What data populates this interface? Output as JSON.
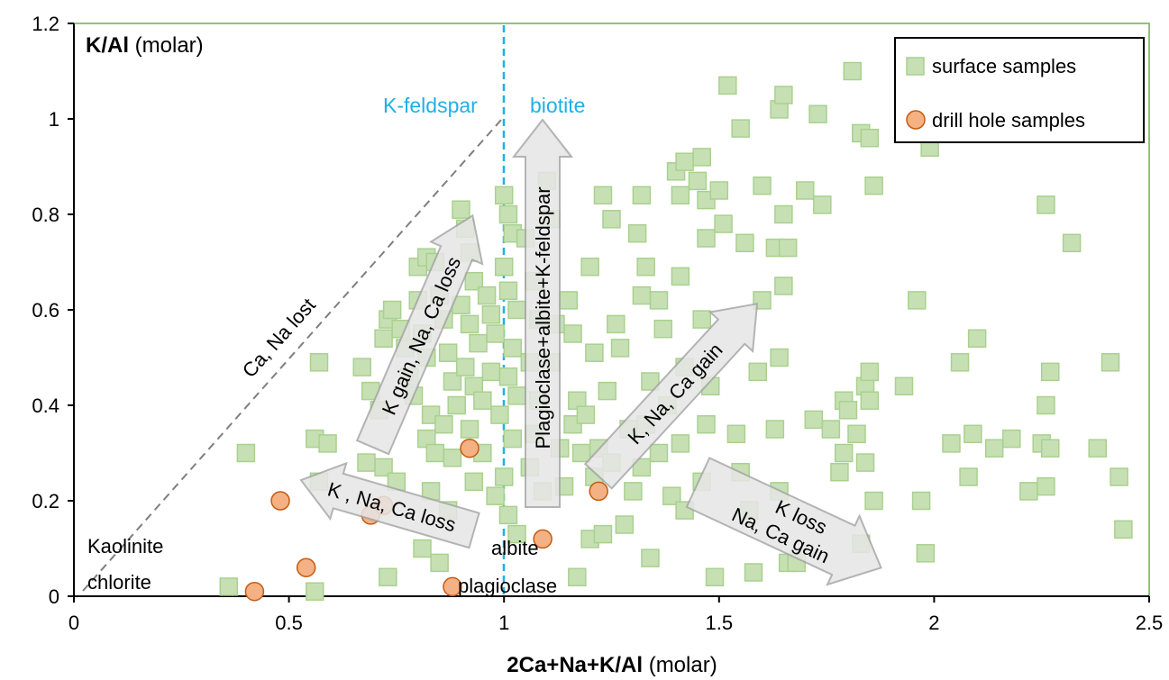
{
  "chart_data": {
    "type": "scatter",
    "x_label_bold": "2Ca+Na+K/Al",
    "x_label_unit": " (molar)",
    "y_label_bold": "K/Al",
    "y_label_unit": " (molar)",
    "xlim": [
      0,
      2.5
    ],
    "ylim": [
      0,
      1.2
    ],
    "x_ticks": [
      "0",
      "0.5",
      "1",
      "1.5",
      "2",
      "2.5"
    ],
    "x_tick_values": [
      0,
      0.5,
      1,
      1.5,
      2,
      2.5
    ],
    "y_ticks": [
      "0",
      "0.2",
      "0.4",
      "0.6",
      "0.8",
      "1",
      "1.2"
    ],
    "y_tick_values": [
      0,
      0.2,
      0.4,
      0.6,
      0.8,
      1,
      1.2
    ],
    "grid": false,
    "legend_position": "top-right",
    "colors": {
      "surface_fill": "#c6e0b4",
      "surface_stroke": "#a9d18e",
      "drill_fill": "#f4b183",
      "drill_stroke": "#c55a11",
      "divider": "#1fb0e6",
      "dashed_line": "#7f7f7f",
      "arrow_fill": "#e7e6e6",
      "arrow_stroke": "#a6a6a6",
      "plot_border": "#70ad47"
    },
    "series": [
      {
        "name": "surface samples",
        "marker": "square",
        "points": [
          [
            0.4,
            0.3
          ],
          [
            0.57,
            0.49
          ],
          [
            0.56,
            0.33
          ],
          [
            0.59,
            0.32
          ],
          [
            0.57,
            0.24
          ],
          [
            0.56,
            0.01
          ],
          [
            0.36,
            0.02
          ],
          [
            0.67,
            0.48
          ],
          [
            0.69,
            0.43
          ],
          [
            0.71,
            0.39
          ],
          [
            0.68,
            0.28
          ],
          [
            0.72,
            0.27
          ],
          [
            0.75,
            0.24
          ],
          [
            0.73,
            0.04
          ],
          [
            0.72,
            0.54
          ],
          [
            0.73,
            0.58
          ],
          [
            0.74,
            0.6
          ],
          [
            0.76,
            0.56
          ],
          [
            0.77,
            0.52
          ],
          [
            0.78,
            0.46
          ],
          [
            0.79,
            0.42
          ],
          [
            0.8,
            0.62
          ],
          [
            0.81,
            0.55
          ],
          [
            0.82,
            0.5
          ],
          [
            0.83,
            0.38
          ],
          [
            0.82,
            0.33
          ],
          [
            0.84,
            0.3
          ],
          [
            0.83,
            0.22
          ],
          [
            0.81,
            0.1
          ],
          [
            0.8,
            0.69
          ],
          [
            0.82,
            0.71
          ],
          [
            0.84,
            0.7
          ],
          [
            0.85,
            0.63
          ],
          [
            0.86,
            0.58
          ],
          [
            0.87,
            0.51
          ],
          [
            0.88,
            0.45
          ],
          [
            0.89,
            0.4
          ],
          [
            0.86,
            0.36
          ],
          [
            0.88,
            0.29
          ],
          [
            0.87,
            0.18
          ],
          [
            0.85,
            0.07
          ],
          [
            0.9,
            0.81
          ],
          [
            0.91,
            0.77
          ],
          [
            0.92,
            0.72
          ],
          [
            0.93,
            0.66
          ],
          [
            0.9,
            0.61
          ],
          [
            0.92,
            0.57
          ],
          [
            0.94,
            0.53
          ],
          [
            0.91,
            0.48
          ],
          [
            0.93,
            0.44
          ],
          [
            0.95,
            0.41
          ],
          [
            0.92,
            0.35
          ],
          [
            0.95,
            0.3
          ],
          [
            0.93,
            0.24
          ],
          [
            0.96,
            0.63
          ],
          [
            0.97,
            0.59
          ],
          [
            0.98,
            0.55
          ],
          [
            0.97,
            0.47
          ],
          [
            0.99,
            0.38
          ],
          [
            0.98,
            0.21
          ],
          [
            1.0,
            0.84
          ],
          [
            1.01,
            0.8
          ],
          [
            1.02,
            0.76
          ],
          [
            1.0,
            0.69
          ],
          [
            1.01,
            0.64
          ],
          [
            1.03,
            0.6
          ],
          [
            1.02,
            0.52
          ],
          [
            1.01,
            0.46
          ],
          [
            1.03,
            0.42
          ],
          [
            1.02,
            0.33
          ],
          [
            1.0,
            0.25
          ],
          [
            1.01,
            0.17
          ],
          [
            1.03,
            0.13
          ],
          [
            1.05,
            0.75
          ],
          [
            1.07,
            0.66
          ],
          [
            1.08,
            0.58
          ],
          [
            1.06,
            0.49
          ],
          [
            1.08,
            0.41
          ],
          [
            1.07,
            0.34
          ],
          [
            1.06,
            0.27
          ],
          [
            1.09,
            0.22
          ],
          [
            1.1,
            0.87
          ],
          [
            1.11,
            0.79
          ],
          [
            1.12,
            0.57
          ],
          [
            1.11,
            0.49
          ],
          [
            1.13,
            0.31
          ],
          [
            1.14,
            0.23
          ],
          [
            1.15,
            0.62
          ],
          [
            1.16,
            0.55
          ],
          [
            1.17,
            0.41
          ],
          [
            1.16,
            0.36
          ],
          [
            1.18,
            0.3
          ],
          [
            1.17,
            0.04
          ],
          [
            1.2,
            0.69
          ],
          [
            1.21,
            0.51
          ],
          [
            1.19,
            0.38
          ],
          [
            1.22,
            0.31
          ],
          [
            1.21,
            0.25
          ],
          [
            1.2,
            0.12
          ],
          [
            1.23,
            0.84
          ],
          [
            1.25,
            0.79
          ],
          [
            1.24,
            0.43
          ],
          [
            1.26,
            0.57
          ],
          [
            1.27,
            0.52
          ],
          [
            1.25,
            0.28
          ],
          [
            1.23,
            0.13
          ],
          [
            1.29,
            0.35
          ],
          [
            1.3,
            0.22
          ],
          [
            1.28,
            0.15
          ],
          [
            1.32,
            0.84
          ],
          [
            1.31,
            0.76
          ],
          [
            1.33,
            0.69
          ],
          [
            1.32,
            0.63
          ],
          [
            1.34,
            0.45
          ],
          [
            1.33,
            0.36
          ],
          [
            1.32,
            0.27
          ],
          [
            1.34,
            0.08
          ],
          [
            1.36,
            0.62
          ],
          [
            1.37,
            0.56
          ],
          [
            1.38,
            0.4
          ],
          [
            1.36,
            0.3
          ],
          [
            1.39,
            0.21
          ],
          [
            1.4,
            0.89
          ],
          [
            1.41,
            0.84
          ],
          [
            1.42,
            0.91
          ],
          [
            1.41,
            0.67
          ],
          [
            1.42,
            0.48
          ],
          [
            1.41,
            0.32
          ],
          [
            1.42,
            0.18
          ],
          [
            1.45,
            0.87
          ],
          [
            1.46,
            0.92
          ],
          [
            1.47,
            0.83
          ],
          [
            1.47,
            0.75
          ],
          [
            1.46,
            0.58
          ],
          [
            1.48,
            0.44
          ],
          [
            1.47,
            0.36
          ],
          [
            1.46,
            0.24
          ],
          [
            1.49,
            0.04
          ],
          [
            1.5,
            0.85
          ],
          [
            1.51,
            0.78
          ],
          [
            1.52,
            1.07
          ],
          [
            1.55,
            0.98
          ],
          [
            1.56,
            0.74
          ],
          [
            1.54,
            0.34
          ],
          [
            1.55,
            0.26
          ],
          [
            1.57,
            0.18
          ],
          [
            1.58,
            0.05
          ],
          [
            1.6,
            0.86
          ],
          [
            1.59,
            0.47
          ],
          [
            1.6,
            0.62
          ],
          [
            1.63,
            0.73
          ],
          [
            1.64,
            1.02
          ],
          [
            1.65,
            1.05
          ],
          [
            1.65,
            0.8
          ],
          [
            1.66,
            0.73
          ],
          [
            1.64,
            0.5
          ],
          [
            1.65,
            0.65
          ],
          [
            1.63,
            0.35
          ],
          [
            1.64,
            0.22
          ],
          [
            1.66,
            0.07
          ],
          [
            1.68,
            0.07
          ],
          [
            1.7,
            0.85
          ],
          [
            1.72,
            0.37
          ],
          [
            1.73,
            1.01
          ],
          [
            1.74,
            0.82
          ],
          [
            1.76,
            0.35
          ],
          [
            1.78,
            0.26
          ],
          [
            1.79,
            0.3
          ],
          [
            1.79,
            0.41
          ],
          [
            1.8,
            0.39
          ],
          [
            1.81,
            1.1
          ],
          [
            1.82,
            0.34
          ],
          [
            1.83,
            0.97
          ],
          [
            1.84,
            0.44
          ],
          [
            1.84,
            0.28
          ],
          [
            1.85,
            0.96
          ],
          [
            1.85,
            0.41
          ],
          [
            1.85,
            0.47
          ],
          [
            1.86,
            0.86
          ],
          [
            1.86,
            0.2
          ],
          [
            1.83,
            0.11
          ],
          [
            1.93,
            0.44
          ],
          [
            1.96,
            0.62
          ],
          [
            1.97,
            0.2
          ],
          [
            1.98,
            0.09
          ],
          [
            1.99,
            0.94
          ],
          [
            2.04,
            0.32
          ],
          [
            2.06,
            0.49
          ],
          [
            2.08,
            0.25
          ],
          [
            2.09,
            0.34
          ],
          [
            2.1,
            0.54
          ],
          [
            2.14,
            0.31
          ],
          [
            2.18,
            0.33
          ],
          [
            2.22,
            0.22
          ],
          [
            2.25,
            0.32
          ],
          [
            2.26,
            0.82
          ],
          [
            2.26,
            0.4
          ],
          [
            2.26,
            0.23
          ],
          [
            2.27,
            0.47
          ],
          [
            2.27,
            0.31
          ],
          [
            2.32,
            0.74
          ],
          [
            2.38,
            0.31
          ],
          [
            2.41,
            0.49
          ],
          [
            2.43,
            0.25
          ],
          [
            2.44,
            0.14
          ]
        ]
      },
      {
        "name": "drill hole samples",
        "marker": "circle",
        "points": [
          [
            0.48,
            0.2
          ],
          [
            0.42,
            0.01
          ],
          [
            0.54,
            0.06
          ],
          [
            0.69,
            0.17
          ],
          [
            0.72,
            0.19
          ],
          [
            0.92,
            0.31
          ],
          [
            0.88,
            0.02
          ],
          [
            1.09,
            0.12
          ],
          [
            1.22,
            0.22
          ]
        ]
      }
    ],
    "annotations": {
      "kfeldspar": "K-feldspar",
      "biotite": "biotite",
      "ca_na_lost": "Ca, Na lost",
      "kaolinite": "Kaolinite",
      "chlorite": "chlorite",
      "albite": "albite",
      "plagioclase": "plagioclase",
      "arrow_k_gain": "K gain, Na, Ca loss",
      "arrow_vertical": "Plagioclase+albite+K-feldspar",
      "arrow_kna_gain": "K, Na, Ca gain",
      "arrow_kna_loss": "K , Na, Ca loss",
      "arrow_kloss_line1": "K loss",
      "arrow_kloss_line2": "Na, Ca gain"
    }
  }
}
